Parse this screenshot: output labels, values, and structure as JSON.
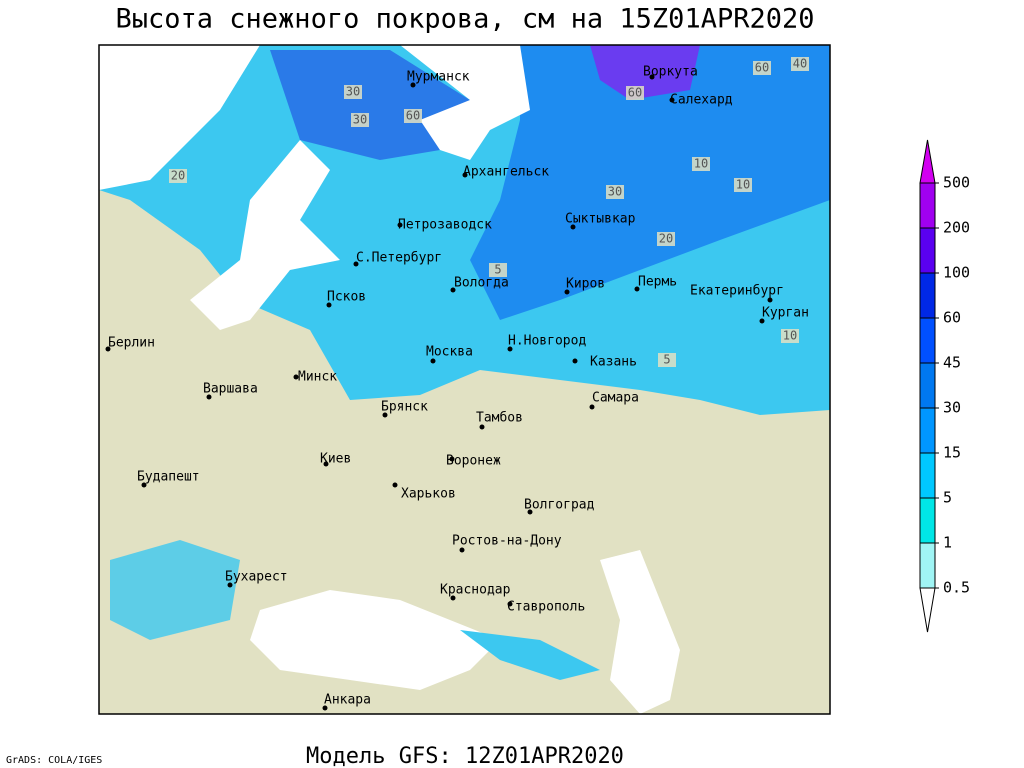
{
  "title": "Высота снежного покрова, см на 15Z01APR2020",
  "footer": "Модель GFS: 12Z01APR2020",
  "credit": "GrADS: COLA/IGES",
  "legend": {
    "levels": [
      0.5,
      1,
      5,
      15,
      30,
      45,
      60,
      100,
      200,
      500
    ],
    "colors": [
      "#ffffff",
      "#a0f5f5",
      "#00e6e6",
      "#00c8ff",
      "#0096ff",
      "#0078f0",
      "#0050ff",
      "#0028e6",
      "#5a00f0",
      "#a000f0",
      "#d200f0"
    ]
  },
  "cities": [
    "Мурманск",
    "Воркута",
    "Салехард",
    "Архангельск",
    "Петрозаводск",
    "Сыктывкар",
    "С.Петербург",
    "Вологда",
    "Киров",
    "Пермь",
    "Екатеринбург",
    "Псков",
    "Курган",
    "Берлин",
    "Москва",
    "Н.Новгород",
    "Казань",
    "Минск",
    "Варшава",
    "Брянск",
    "Самара",
    "Тамбов",
    "Киев",
    "Воронеж",
    "Будапешт",
    "Харьков",
    "Волгоград",
    "Ростов-на-Дону",
    "Бухарест",
    "Краснодар",
    "Ставрополь",
    "Анкара"
  ],
  "contour_labels": [
    40,
    60,
    60,
    30,
    30,
    60,
    20,
    10,
    10,
    20,
    5,
    10,
    5,
    30
  ]
}
